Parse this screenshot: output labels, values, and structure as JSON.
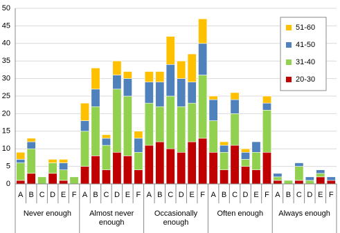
{
  "chart_data": {
    "type": "stacked-bar",
    "categories": [
      "A",
      "B",
      "C",
      "D",
      "E",
      "F",
      "A",
      "B",
      "C",
      "D",
      "E",
      "F",
      "A",
      "B",
      "C",
      "D",
      "E",
      "F",
      "A",
      "B",
      "C",
      "D",
      "E",
      "F",
      "A",
      "B",
      "C",
      "D",
      "E",
      "F"
    ],
    "groups": [
      "Never enough",
      "Almost never enough",
      "Occasionally enough",
      "Often enough",
      "Always enough"
    ],
    "series": [
      {
        "name": "20-30",
        "color": "#c00000",
        "values": [
          1,
          3,
          0,
          3,
          1,
          0,
          5,
          8,
          4,
          9,
          8,
          4,
          11,
          12,
          10,
          9,
          12,
          13,
          9,
          4,
          11,
          5,
          4,
          9,
          1,
          0,
          1,
          0,
          2,
          1
        ]
      },
      {
        "name": "31-40",
        "color": "#92d050",
        "values": [
          5,
          7,
          2,
          3,
          3,
          2,
          10,
          14,
          7,
          18,
          17,
          5,
          12,
          10,
          15,
          13,
          11,
          18,
          9,
          5,
          9,
          2,
          5,
          12,
          1,
          1,
          4,
          1,
          1,
          0
        ]
      },
      {
        "name": "41-50",
        "color": "#4f81bd",
        "values": [
          1,
          2,
          0,
          0,
          2,
          0,
          3,
          5,
          2,
          4,
          5,
          4,
          6,
          7,
          9,
          8,
          6,
          9,
          6,
          2,
          4,
          2,
          3,
          2,
          1,
          0,
          1,
          1,
          1,
          1
        ]
      },
      {
        "name": "51-60",
        "color": "#ffc000",
        "values": [
          2,
          1,
          0,
          1,
          1,
          0,
          5,
          6,
          1,
          4,
          2,
          2,
          3,
          3,
          8,
          5,
          8,
          7,
          1,
          1,
          2,
          1,
          0,
          2,
          0,
          0,
          0,
          0,
          0,
          0
        ]
      }
    ],
    "ylim": [
      0,
      50
    ],
    "yticks": [
      0,
      5,
      10,
      15,
      20,
      25,
      30,
      35,
      40,
      45,
      50
    ],
    "grid": true,
    "legend": "top-right"
  }
}
